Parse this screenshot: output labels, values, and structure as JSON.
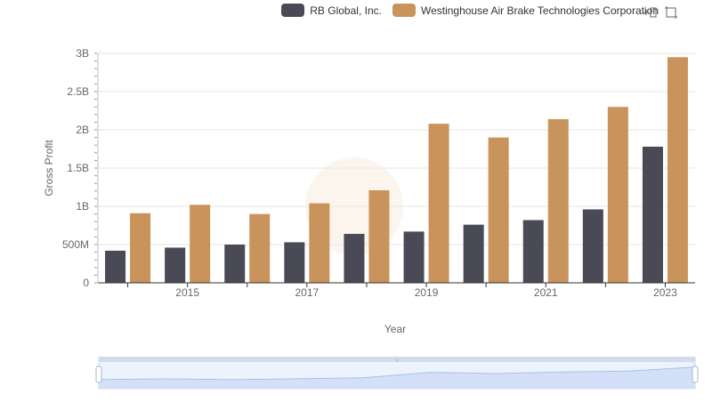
{
  "legend": {
    "items": [
      {
        "label": "RB Global, Inc.",
        "color": "#4a4a57"
      },
      {
        "label": "Westinghouse Air Brake Technologies Corporation",
        "color": "#c9935c"
      }
    ]
  },
  "toolbox": {
    "icons": [
      "zoom-icon",
      "restore-icon"
    ]
  },
  "chart_data": {
    "type": "bar",
    "categories": [
      "2014",
      "2015",
      "2016",
      "2017",
      "2018",
      "2019",
      "2020",
      "2021",
      "2022",
      "2023"
    ],
    "x_tick_labels": [
      "2015",
      "2017",
      "2019",
      "2021",
      "2023"
    ],
    "xlabel": "Year",
    "ylabel": "Gross Profit",
    "ylim": [
      0,
      3000000000
    ],
    "y_ticks": [
      0,
      500000000,
      1000000000,
      1500000000,
      2000000000,
      2500000000,
      3000000000
    ],
    "y_tick_labels": [
      "0",
      "500M",
      "1B",
      "1.5B",
      "2B",
      "2.5B",
      "3B"
    ],
    "grid": true,
    "legend_position": "top-right",
    "series": [
      {
        "name": "RB Global, Inc.",
        "color": "#4a4a57",
        "values": [
          420000000,
          460000000,
          500000000,
          530000000,
          640000000,
          670000000,
          760000000,
          820000000,
          960000000,
          1780000000
        ]
      },
      {
        "name": "Westinghouse Air Brake Technologies Corporation",
        "color": "#c9935c",
        "values": [
          910000000,
          1020000000,
          900000000,
          1040000000,
          1210000000,
          2080000000,
          1900000000,
          2140000000,
          2300000000,
          2950000000
        ]
      }
    ],
    "data_zoom": {
      "range": [
        0,
        100
      ],
      "color": "#a6c1ee"
    }
  }
}
